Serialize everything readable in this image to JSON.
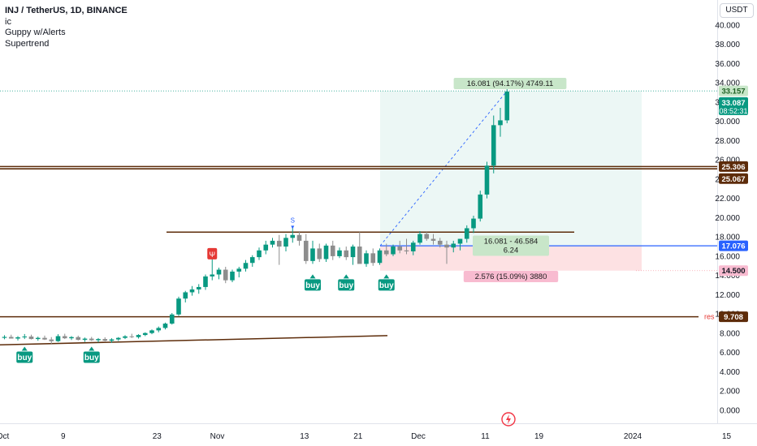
{
  "legend": {
    "symbol": "INJ / TetherUS, 1D, BINANCE",
    "indicators": [
      "ic",
      "Guppy w/Alerts",
      "Supertrend"
    ]
  },
  "currency": "USDT",
  "chart_data": {
    "type": "candlestick",
    "y_axis": {
      "min": 0,
      "max": 40,
      "ticks": [
        "0.000",
        "2.000",
        "4.000",
        "6.000",
        "8.000",
        "10.000",
        "12.000",
        "14.000",
        "16.000",
        "18.000",
        "20.000",
        "22.000",
        "24.000",
        "26.000",
        "28.000",
        "30.000",
        "32.000",
        "34.000",
        "36.000",
        "38.000",
        "40.000"
      ],
      "price_labels": [
        {
          "value": 33.157,
          "text": "33.157",
          "color": "#c8e6c9",
          "text_color": "#1b5e20"
        },
        {
          "value": 31.95,
          "text": "33.087",
          "sub": "08:52:31",
          "color": "#089981",
          "text_color": "#ffffff"
        },
        {
          "value": 25.306,
          "text": "25.306",
          "color": "#5d2c0a",
          "text_color": "#ffffff"
        },
        {
          "value": 24.05,
          "text": "25.067",
          "color": "#5d2c0a",
          "text_color": "#ffffff"
        },
        {
          "value": 17.076,
          "text": "17.076",
          "color": "#2962ff",
          "text_color": "#ffffff"
        },
        {
          "value": 14.5,
          "text": "14.500",
          "color": "#f8bbd0",
          "text_color": "#131722"
        },
        {
          "value": 9.708,
          "text": "9.708",
          "color": "#5d2c0a",
          "text_color": "#ffffff"
        }
      ]
    },
    "x_axis": {
      "ticks": [
        "Oct",
        "9",
        "23",
        "Nov",
        "13",
        "21",
        "Dec",
        "11",
        "19",
        "2024",
        "15"
      ],
      "tick_day": [
        0,
        9,
        23,
        32,
        45,
        53,
        62,
        72,
        80,
        94,
        108
      ]
    },
    "candles_ohlc": [
      [
        7.52,
        7.8,
        7.38,
        7.62
      ],
      [
        7.62,
        7.85,
        7.45,
        7.45
      ],
      [
        7.45,
        7.7,
        7.25,
        7.58
      ],
      [
        7.58,
        7.92,
        7.4,
        7.66
      ],
      [
        7.66,
        7.85,
        7.35,
        7.4
      ],
      [
        7.4,
        7.65,
        7.22,
        7.52
      ],
      [
        7.52,
        7.75,
        7.3,
        7.35
      ],
      [
        7.35,
        7.6,
        6.9,
        7.18
      ],
      [
        7.18,
        7.9,
        7.1,
        7.7
      ],
      [
        7.7,
        7.95,
        7.4,
        7.48
      ],
      [
        7.48,
        7.7,
        7.3,
        7.6
      ],
      [
        7.6,
        7.75,
        7.25,
        7.32
      ],
      [
        7.32,
        7.55,
        7.1,
        7.44
      ],
      [
        7.44,
        7.62,
        7.2,
        7.28
      ],
      [
        7.28,
        7.5,
        7.05,
        7.4
      ],
      [
        7.4,
        7.58,
        7.15,
        7.22
      ],
      [
        7.22,
        7.48,
        7.02,
        7.36
      ],
      [
        7.36,
        7.6,
        7.2,
        7.52
      ],
      [
        7.52,
        7.8,
        7.4,
        7.68
      ],
      [
        7.68,
        7.95,
        7.5,
        7.6
      ],
      [
        7.6,
        7.9,
        7.45,
        7.82
      ],
      [
        7.82,
        8.1,
        7.7,
        8.02
      ],
      [
        8.02,
        8.4,
        7.9,
        8.3
      ],
      [
        8.3,
        8.7,
        8.1,
        8.55
      ],
      [
        8.55,
        9.1,
        8.4,
        9.0
      ],
      [
        9.0,
        10.1,
        8.9,
        9.95
      ],
      [
        9.95,
        11.8,
        9.8,
        11.6
      ],
      [
        11.6,
        12.4,
        11.2,
        12.25
      ],
      [
        12.25,
        12.9,
        11.9,
        12.55
      ],
      [
        12.55,
        13.1,
        12.1,
        12.8
      ],
      [
        12.8,
        14.1,
        12.5,
        13.9
      ],
      [
        13.9,
        16.6,
        13.5,
        14.1
      ],
      [
        14.1,
        14.8,
        13.6,
        14.6
      ],
      [
        14.6,
        14.9,
        13.2,
        13.5
      ],
      [
        13.5,
        14.6,
        13.3,
        14.4
      ],
      [
        14.4,
        14.9,
        13.8,
        14.7
      ],
      [
        14.7,
        15.6,
        14.4,
        15.3
      ],
      [
        15.3,
        16.1,
        14.9,
        15.9
      ],
      [
        15.9,
        16.9,
        15.6,
        16.6
      ],
      [
        16.6,
        17.6,
        16.2,
        17.2
      ],
      [
        17.2,
        17.9,
        16.9,
        17.6
      ],
      [
        17.6,
        18.2,
        15.1,
        17.0
      ],
      [
        17.0,
        18.3,
        16.5,
        17.9
      ],
      [
        17.9,
        19.0,
        17.4,
        18.2
      ],
      [
        18.2,
        18.6,
        17.1,
        17.6
      ],
      [
        17.6,
        18.3,
        15.2,
        15.5
      ],
      [
        15.5,
        17.6,
        15.2,
        16.8
      ],
      [
        16.8,
        17.3,
        15.4,
        15.7
      ],
      [
        15.7,
        17.3,
        15.4,
        17.1
      ],
      [
        17.1,
        17.6,
        15.6,
        16.0
      ],
      [
        16.0,
        16.9,
        15.8,
        16.6
      ],
      [
        16.6,
        17.0,
        15.6,
        15.9
      ],
      [
        15.9,
        17.2,
        15.1,
        17.0
      ],
      [
        17.0,
        18.5,
        16.3,
        15.2
      ],
      [
        15.2,
        16.6,
        14.9,
        16.3
      ],
      [
        16.3,
        16.8,
        15.0,
        15.3
      ],
      [
        15.3,
        16.8,
        15.1,
        16.6
      ],
      [
        16.6,
        17.3,
        16.0,
        16.2
      ],
      [
        16.2,
        17.2,
        16.0,
        17.0
      ],
      [
        17.0,
        17.6,
        16.3,
        16.6
      ],
      [
        16.6,
        17.8,
        16.2,
        16.5
      ],
      [
        16.5,
        17.6,
        16.1,
        17.4
      ],
      [
        17.4,
        18.6,
        17.2,
        18.3
      ],
      [
        18.3,
        18.5,
        17.6,
        17.8
      ],
      [
        17.8,
        18.3,
        17.2,
        17.6
      ],
      [
        17.6,
        17.9,
        16.9,
        17.2
      ],
      [
        17.2,
        17.6,
        15.2,
        16.9
      ],
      [
        16.9,
        17.6,
        16.4,
        17.3
      ],
      [
        17.3,
        17.8,
        16.6,
        17.8
      ],
      [
        17.8,
        19.2,
        17.4,
        18.9
      ],
      [
        18.9,
        20.2,
        18.4,
        19.9
      ],
      [
        19.9,
        22.8,
        19.6,
        22.4
      ],
      [
        22.4,
        25.8,
        22.0,
        25.4
      ],
      [
        25.4,
        30.6,
        24.6,
        29.6
      ],
      [
        29.6,
        31.4,
        28.4,
        30.1
      ],
      [
        30.1,
        33.4,
        29.8,
        33.09
      ]
    ],
    "candle_color_up": "#089981",
    "candle_color_down": "#8d8d8d",
    "levels": [
      {
        "value": 25.306,
        "color": "#5d2c0a",
        "label": ""
      },
      {
        "value": 25.067,
        "color": "#5d2c0a",
        "label": ""
      },
      {
        "value": 18.5,
        "color": "#5d2c0a",
        "label": ""
      },
      {
        "value": 9.708,
        "color": "#5d2c0a",
        "label": "res"
      }
    ],
    "trendline": {
      "start_value": 6.8,
      "end_value": 7.75,
      "color": "#5d2c0a"
    },
    "position": {
      "entry": 17.076,
      "target": 33.157,
      "stop": 14.5,
      "target_label": "16.081 (94.17%) 4749.11",
      "ratio_label_line1": "16.081 - 46.584",
      "ratio_label_line2": "6.24",
      "stop_label": "2.576 (15.09%) 3880"
    },
    "buy_signals": [
      {
        "day": 3,
        "value": 6.1,
        "label": "buy"
      },
      {
        "day": 13,
        "value": 6.1,
        "label": "buy"
      },
      {
        "day": 46,
        "value": 13.6,
        "label": "buy"
      },
      {
        "day": 51,
        "value": 13.6,
        "label": "buy"
      },
      {
        "day": 57,
        "value": 13.6,
        "label": "buy"
      }
    ],
    "markers": [
      {
        "type": "s",
        "day": 43,
        "value": 19.5,
        "text": "S"
      },
      {
        "type": "flag",
        "day": 31,
        "value": 16.0,
        "text": "Ψ"
      }
    ]
  }
}
